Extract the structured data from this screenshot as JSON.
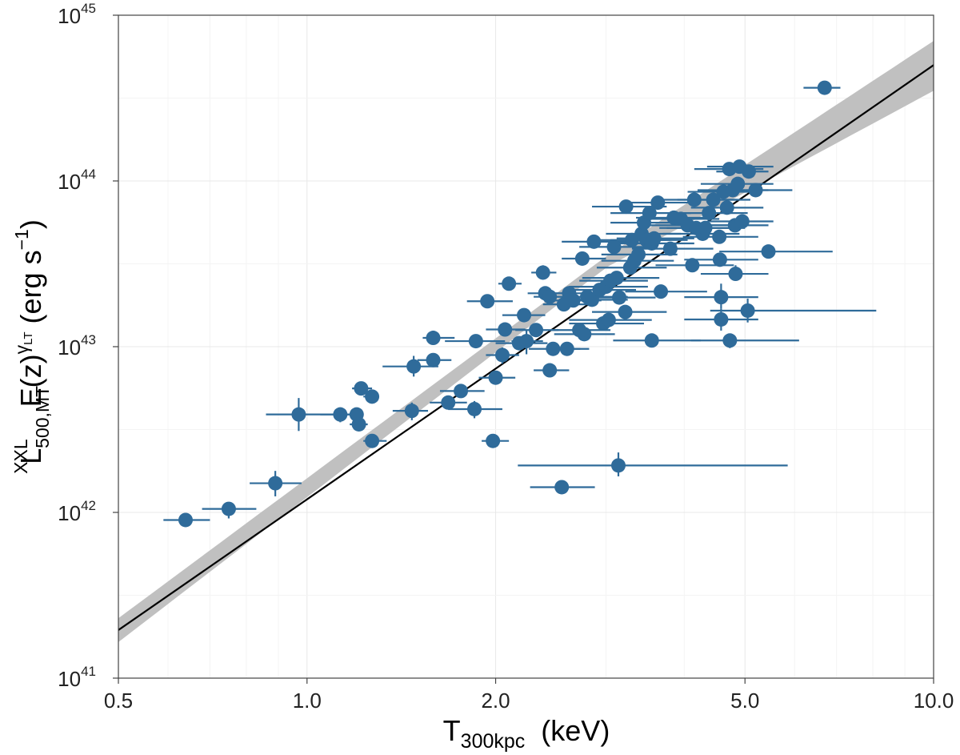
{
  "chart_data": {
    "type": "scatter",
    "x_scale": "log",
    "y_scale": "log",
    "xlim": [
      0.5,
      10.0
    ],
    "ylim": [
      1e+41,
      1e+45
    ],
    "xticks": [
      {
        "value": 0.5,
        "label": "0.5"
      },
      {
        "value": 1.0,
        "label": "1.0"
      },
      {
        "value": 2.0,
        "label": "2.0"
      },
      {
        "value": 5.0,
        "label": "5.0"
      },
      {
        "value": 10.0,
        "label": "10.0"
      }
    ],
    "yticks": [
      {
        "value": 1e+41,
        "base": "10",
        "exp": "41"
      },
      {
        "value": 1e+42,
        "base": "10",
        "exp": "42"
      },
      {
        "value": 1e+43,
        "base": "10",
        "exp": "43"
      },
      {
        "value": 1e+44,
        "base": "10",
        "exp": "44"
      },
      {
        "value": 1e+45,
        "base": "10",
        "exp": "45"
      }
    ],
    "xlabel": {
      "main": "T",
      "sub": "300kpc",
      "unit": "(keV)"
    },
    "ylabel": {
      "L": "L",
      "sup": "XXL",
      "sub": "500,MT",
      "ez": "E(z)",
      "gamma": "γ",
      "gamma_sub": "LT",
      "unit_open": "(erg s",
      "unit_exp": "−1",
      "unit_close": ")"
    },
    "grid": true,
    "fit": {
      "type": "power-law",
      "T0": 0.5,
      "L0": 1.95e+41,
      "T1": 10.0,
      "L1": 5e+44,
      "band_at_T0": [
        1.65e+41,
        2.3e+41
      ],
      "band_at_Tpivot": [
        3e+43,
        3.5e+43
      ],
      "T_pivot": 3.0,
      "band_at_T1": [
        3.5e+44,
        7e+44
      ],
      "line_color": "#000000",
      "band_color": "#c0c0c0"
    },
    "marker_color": "#2f6b9a",
    "series": [
      {
        "name": "clusters",
        "points": [
          {
            "T": 0.64,
            "L": 9e+41,
            "Tlo": 0.59,
            "Thi": 0.7
          },
          {
            "T": 0.75,
            "L": 1.05e+42,
            "Tlo": 0.68,
            "Thi": 0.83,
            "Llo": 9.2e+41,
            "Lhi": 1.15e+42
          },
          {
            "T": 0.89,
            "L": 1.5e+42,
            "Tlo": 0.81,
            "Thi": 0.98,
            "Llo": 1.25e+42,
            "Lhi": 1.78e+42
          },
          {
            "T": 0.97,
            "L": 3.9e+42,
            "Tlo": 0.86,
            "Thi": 1.1,
            "Llo": 3.1e+42,
            "Lhi": 4.9e+42
          },
          {
            "T": 1.13,
            "L": 3.9e+42,
            "Tlo": 1.05,
            "Thi": 1.21,
            "Llo": 3.5e+42,
            "Lhi": 4.3e+42
          },
          {
            "T": 1.2,
            "L": 3.9e+42,
            "Tlo": 1.15,
            "Thi": 1.23,
            "Llo": 3.6e+42,
            "Lhi": 4.2e+42
          },
          {
            "T": 1.21,
            "L": 3.4e+42,
            "Tlo": 1.17,
            "Thi": 1.25,
            "Llo": 3.1e+42,
            "Lhi": 3.7e+42
          },
          {
            "T": 1.22,
            "L": 5.6e+42,
            "Tlo": 1.18,
            "Thi": 1.27,
            "Llo": 5.3e+42,
            "Lhi": 5.9e+42
          },
          {
            "T": 1.27,
            "L": 5e+42,
            "Tlo": 1.23,
            "Thi": 1.3,
            "Llo": 4.7e+42,
            "Lhi": 5.3e+42
          },
          {
            "T": 1.27,
            "L": 2.7e+42,
            "Tlo": 1.23,
            "Thi": 1.34,
            "Llo": 2.5e+42,
            "Lhi": 2.9e+42
          },
          {
            "T": 1.47,
            "L": 4.1e+42,
            "Tlo": 1.37,
            "Thi": 1.56,
            "Llo": 3.6e+42,
            "Lhi": 4.6e+42
          },
          {
            "T": 1.48,
            "L": 7.6e+42,
            "Tlo": 1.32,
            "Thi": 1.62,
            "Llo": 6.6e+42,
            "Lhi": 8.8e+42
          },
          {
            "T": 1.59,
            "L": 8.3e+42,
            "Tlo": 1.5,
            "Thi": 1.7,
            "Llo": 7.6e+42,
            "Lhi": 9e+42
          },
          {
            "T": 1.59,
            "L": 1.13e+43,
            "Tlo": 1.53,
            "Thi": 1.72,
            "Llo": 1.03e+43,
            "Lhi": 1.25e+43
          },
          {
            "T": 1.68,
            "L": 4.6e+42,
            "Tlo": 1.57,
            "Thi": 1.8,
            "Llo": 4.3e+42,
            "Lhi": 4.9e+42
          },
          {
            "T": 1.76,
            "L": 5.4e+42,
            "Tlo": 1.63,
            "Thi": 1.92,
            "Llo": 5e+42,
            "Lhi": 5.8e+42
          },
          {
            "T": 1.85,
            "L": 4.2e+42,
            "Tlo": 1.68,
            "Thi": 2.05,
            "Llo": 3.7e+42,
            "Lhi": 4.7e+42
          },
          {
            "T": 1.86,
            "L": 1.08e+43,
            "Tlo": 1.66,
            "Thi": 2.07
          },
          {
            "T": 1.94,
            "L": 1.88e+43,
            "Tlo": 1.8,
            "Thi": 2.13
          },
          {
            "T": 1.98,
            "L": 2.7e+42,
            "Tlo": 1.9,
            "Thi": 2.1
          },
          {
            "T": 2.0,
            "L": 6.5e+42,
            "Tlo": 1.88,
            "Thi": 2.15
          },
          {
            "T": 2.05,
            "L": 8.9e+42,
            "Tlo": 1.93,
            "Thi": 2.18,
            "Llo": 7.9e+42,
            "Lhi": 9.9e+42
          },
          {
            "T": 2.07,
            "L": 1.27e+43,
            "Tlo": 1.93,
            "Thi": 2.23
          },
          {
            "T": 2.1,
            "L": 2.4e+43,
            "Tlo": 2.02,
            "Thi": 2.2
          },
          {
            "T": 2.18,
            "L": 1.05e+43,
            "Tlo": 2.0,
            "Thi": 2.42,
            "Llo": 9.5e+42,
            "Lhi": 1.15e+43
          },
          {
            "T": 2.22,
            "L": 1.55e+43,
            "Tlo": 2.05,
            "Thi": 2.4
          },
          {
            "T": 2.24,
            "L": 1.08e+43,
            "Tlo": 2.12,
            "Thi": 2.38,
            "Llo": 9e+42,
            "Lhi": 1.25e+43
          },
          {
            "T": 2.32,
            "L": 1.26e+43,
            "Tlo": 2.15,
            "Thi": 2.52
          },
          {
            "T": 2.38,
            "L": 2.8e+43,
            "Tlo": 2.28,
            "Thi": 2.5,
            "Llo": 2.55e+43,
            "Lhi": 3.1e+43
          },
          {
            "T": 2.4,
            "L": 2.1e+43,
            "Tlo": 2.25,
            "Thi": 2.62
          },
          {
            "T": 2.44,
            "L": 7.2e+42,
            "Tlo": 2.3,
            "Thi": 2.62
          },
          {
            "T": 2.44,
            "L": 2e+43,
            "Tlo": 2.3,
            "Thi": 2.62
          },
          {
            "T": 2.47,
            "L": 9.7e+42,
            "Tlo": 2.26,
            "Thi": 2.73
          },
          {
            "T": 2.55,
            "L": 1.42e+42,
            "Tlo": 2.27,
            "Thi": 2.88
          },
          {
            "T": 2.57,
            "L": 1.8e+43,
            "Tlo": 2.38,
            "Thi": 2.82
          },
          {
            "T": 2.6,
            "L": 9.7e+42,
            "Tlo": 2.42,
            "Thi": 2.82
          },
          {
            "T": 2.62,
            "L": 2.1e+43,
            "Tlo": 2.38,
            "Thi": 2.88
          },
          {
            "T": 2.66,
            "L": 1.9e+43,
            "Tlo": 2.45,
            "Thi": 2.95
          },
          {
            "T": 2.72,
            "L": 1.26e+43,
            "Tlo": 2.45,
            "Thi": 3.05
          },
          {
            "T": 2.75,
            "L": 3.4e+43,
            "Tlo": 2.55,
            "Thi": 3.0
          },
          {
            "T": 2.77,
            "L": 1.19e+43,
            "Tlo": 2.48,
            "Thi": 3.1
          },
          {
            "T": 2.8,
            "L": 2e+43,
            "Tlo": 2.45,
            "Thi": 3.25
          },
          {
            "T": 2.85,
            "L": 1.92e+43,
            "Tlo": 2.55,
            "Thi": 3.25
          },
          {
            "T": 2.87,
            "L": 4.3e+43,
            "Tlo": 2.55,
            "Thi": 3.3
          },
          {
            "T": 2.93,
            "L": 2.2e+43,
            "Tlo": 2.62,
            "Thi": 3.35
          },
          {
            "T": 2.97,
            "L": 1.38e+43,
            "Tlo": 2.62,
            "Thi": 3.45
          },
          {
            "T": 3.0,
            "L": 2.3e+43,
            "Tlo": 2.62,
            "Thi": 3.5
          },
          {
            "T": 3.03,
            "L": 1.45e+43,
            "Tlo": 2.62,
            "Thi": 3.55
          },
          {
            "T": 3.05,
            "L": 2.5e+43,
            "Tlo": 2.72,
            "Thi": 3.5
          },
          {
            "T": 3.09,
            "L": 4e+43,
            "Tlo": 2.72,
            "Thi": 3.55
          },
          {
            "T": 3.12,
            "L": 2.6e+43,
            "Tlo": 2.75,
            "Thi": 3.65
          },
          {
            "T": 3.14,
            "L": 1.92e+42,
            "Tlo": 2.17,
            "Thi": 5.85,
            "Llo": 1.65e+42,
            "Lhi": 2.3e+42
          },
          {
            "T": 3.15,
            "L": 1.98e+43,
            "Tlo": 2.8,
            "Thi": 3.6
          },
          {
            "T": 3.22,
            "L": 1.62e+43,
            "Tlo": 2.85,
            "Thi": 3.75
          },
          {
            "T": 3.23,
            "L": 7e+43,
            "Tlo": 2.85,
            "Thi": 3.75
          },
          {
            "T": 3.28,
            "L": 3e+43,
            "Tlo": 2.9,
            "Thi": 3.75
          },
          {
            "T": 3.3,
            "L": 4.4e+43,
            "Tlo": 2.92,
            "Thi": 3.8
          },
          {
            "T": 3.33,
            "L": 3.3e+43,
            "Tlo": 2.95,
            "Thi": 3.85
          },
          {
            "T": 3.38,
            "L": 3.6e+43,
            "Tlo": 2.95,
            "Thi": 3.9
          },
          {
            "T": 3.42,
            "L": 4.8e+43,
            "Tlo": 3.0,
            "Thi": 3.95
          },
          {
            "T": 3.45,
            "L": 5.6e+43,
            "Tlo": 3.05,
            "Thi": 4.0
          },
          {
            "T": 3.48,
            "L": 4.4e+43,
            "Tlo": 3.05,
            "Thi": 4.05
          },
          {
            "T": 3.52,
            "L": 6.4e+43,
            "Tlo": 3.05,
            "Thi": 4.1
          },
          {
            "T": 3.55,
            "L": 1.09e+43,
            "Tlo": 3.08,
            "Thi": 4.25
          },
          {
            "T": 3.55,
            "L": 4.2e+43,
            "Tlo": 3.12,
            "Thi": 4.15
          },
          {
            "T": 3.58,
            "L": 4.5e+43,
            "Tlo": 3.12,
            "Thi": 4.15
          },
          {
            "T": 3.63,
            "L": 7.4e+43,
            "Tlo": 3.2,
            "Thi": 4.25
          },
          {
            "T": 3.67,
            "L": 2.15e+43,
            "Tlo": 3.22,
            "Thi": 4.35
          },
          {
            "T": 3.8,
            "L": 3.9e+43,
            "Tlo": 3.3,
            "Thi": 4.45
          },
          {
            "T": 3.85,
            "L": 6e+43,
            "Tlo": 3.35,
            "Thi": 4.45
          },
          {
            "T": 3.95,
            "L": 5.9e+43,
            "Tlo": 3.4,
            "Thi": 4.55
          },
          {
            "T": 4.05,
            "L": 5.4e+43,
            "Tlo": 3.5,
            "Thi": 4.7
          },
          {
            "T": 4.12,
            "L": 3.1e+43,
            "Tlo": 3.6,
            "Thi": 4.8
          },
          {
            "T": 4.15,
            "L": 7.7e+43,
            "Tlo": 3.6,
            "Thi": 4.85
          },
          {
            "T": 4.18,
            "L": 5.2e+43,
            "Tlo": 3.65,
            "Thi": 4.85
          },
          {
            "T": 4.28,
            "L": 4.8e+43,
            "Tlo": 3.7,
            "Thi": 4.9
          },
          {
            "T": 4.32,
            "L": 5.2e+43,
            "Tlo": 3.75,
            "Thi": 5.0
          },
          {
            "T": 4.38,
            "L": 6.4e+43,
            "Tlo": 3.8,
            "Thi": 5.05
          },
          {
            "T": 4.45,
            "L": 7.7e+43,
            "Tlo": 3.9,
            "Thi": 5.1
          },
          {
            "T": 4.55,
            "L": 4.6e+43,
            "Tlo": 3.98,
            "Thi": 5.25
          },
          {
            "T": 4.56,
            "L": 3.35e+43,
            "Tlo": 4.0,
            "Thi": 5.25
          },
          {
            "T": 4.58,
            "L": 1.99e+43,
            "Lhi": 2.4e+43,
            "Llo": 1.7e+43,
            "Tlo": 4.0,
            "Thi": 5.25
          },
          {
            "T": 4.58,
            "L": 1.46e+43,
            "Llo": 1.25e+43,
            "Lhi": 1.7e+43,
            "Tlo": 4.0,
            "Thi": 5.25
          },
          {
            "T": 4.62,
            "L": 8.6e+43,
            "Tlo": 4.05,
            "Thi": 5.3
          },
          {
            "T": 4.68,
            "L": 6.9e+43,
            "Tlo": 4.1,
            "Thi": 5.35
          },
          {
            "T": 4.72,
            "L": 1.18e+44,
            "Tlo": 4.15,
            "Thi": 5.35
          },
          {
            "T": 4.73,
            "L": 1.09e+43,
            "Llo": 9.8e+42,
            "Lhi": 1.2e+43,
            "Tlo": 4.1,
            "Thi": 6.1
          },
          {
            "T": 4.78,
            "L": 8.8e+43,
            "Tlo": 4.2,
            "Thi": 5.45
          },
          {
            "T": 4.82,
            "L": 5.4e+43,
            "Tlo": 4.25,
            "Thi": 5.45
          },
          {
            "T": 4.83,
            "L": 2.75e+43,
            "Llo": 2.5e+43,
            "Lhi": 3.1e+43,
            "Tlo": 4.25,
            "Thi": 5.45
          },
          {
            "T": 4.87,
            "L": 9.6e+43,
            "Tlo": 4.25,
            "Thi": 5.55
          },
          {
            "T": 4.9,
            "L": 1.22e+44,
            "Tlo": 4.35,
            "Thi": 5.55
          },
          {
            "T": 4.95,
            "L": 5.7e+43,
            "Tlo": 4.35,
            "Thi": 5.55
          },
          {
            "T": 5.05,
            "L": 1.65e+43,
            "Llo": 1.4e+43,
            "Lhi": 1.95e+43,
            "Tlo": 4.4,
            "Thi": 8.1
          },
          {
            "T": 5.07,
            "L": 1.14e+44,
            "Tlo": 4.5,
            "Thi": 5.45
          },
          {
            "T": 5.2,
            "L": 8.8e+43,
            "Tlo": 4.55,
            "Thi": 5.95
          },
          {
            "T": 5.45,
            "L": 3.75e+43,
            "Tlo": 4.55,
            "Thi": 6.9
          },
          {
            "T": 6.7,
            "L": 3.65e+44,
            "Tlo": 6.2,
            "Thi": 7.1
          }
        ]
      }
    ]
  }
}
